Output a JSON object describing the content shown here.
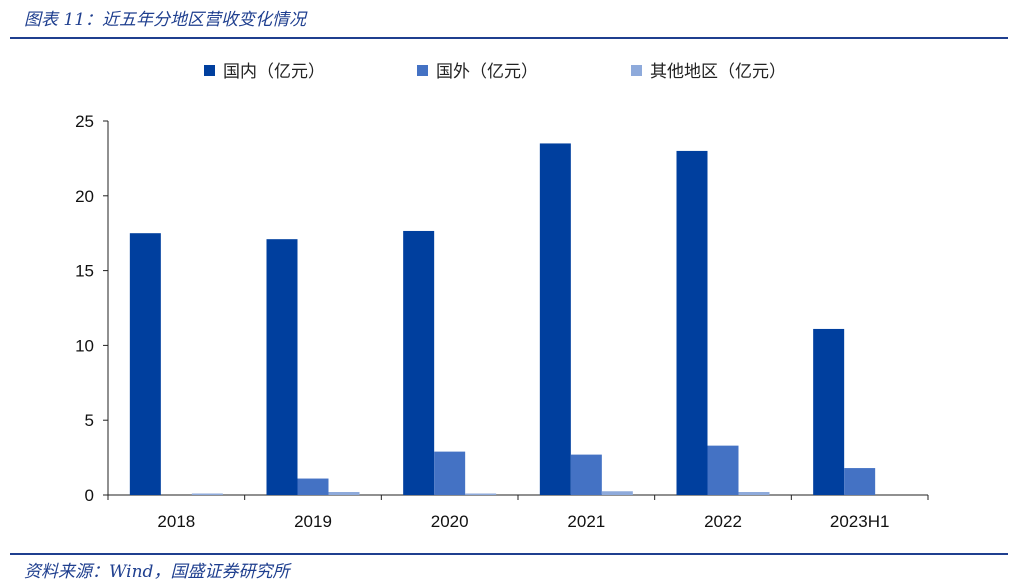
{
  "title": "图表 11：近五年分地区营收变化情况",
  "source": "资料来源：Wind，国盛证券研究所",
  "chart_data": {
    "type": "bar",
    "categories": [
      "2018",
      "2019",
      "2020",
      "2021",
      "2022",
      "2023H1"
    ],
    "series": [
      {
        "name": "国内（亿元）",
        "color": "#003f9e",
        "values": [
          17.5,
          17.1,
          17.65,
          23.5,
          23.0,
          11.1
        ]
      },
      {
        "name": "国外（亿元）",
        "color": "#4472c4",
        "values": [
          0.0,
          1.1,
          2.9,
          2.7,
          3.3,
          1.8
        ]
      },
      {
        "name": "其他地区（亿元）",
        "color": "#8eaadb",
        "values": [
          0.1,
          0.2,
          0.1,
          0.25,
          0.2,
          0.0
        ]
      }
    ],
    "ylim": [
      0,
      25
    ],
    "yticks": [
      0,
      5,
      10,
      15,
      20,
      25
    ],
    "grid": false,
    "legend": "top"
  }
}
